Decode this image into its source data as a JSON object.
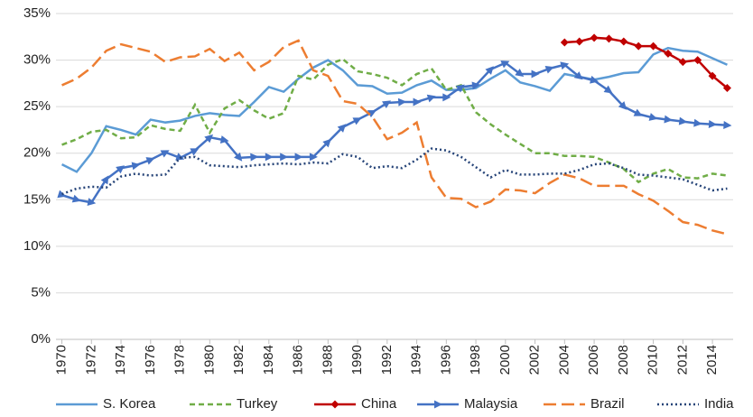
{
  "chart_data": {
    "type": "line",
    "x": [
      1970,
      1971,
      1972,
      1973,
      1974,
      1975,
      1976,
      1977,
      1978,
      1979,
      1980,
      1981,
      1982,
      1983,
      1984,
      1985,
      1986,
      1987,
      1988,
      1989,
      1990,
      1991,
      1992,
      1993,
      1994,
      1995,
      1996,
      1997,
      1998,
      1999,
      2000,
      2001,
      2002,
      2003,
      2004,
      2005,
      2006,
      2007,
      2008,
      2009,
      2010,
      2011,
      2012,
      2013,
      2014,
      2015
    ],
    "xlim": [
      1969.6,
      2015.4
    ],
    "xticks": [
      1970,
      1972,
      1974,
      1976,
      1978,
      1980,
      1982,
      1984,
      1986,
      1988,
      1990,
      1992,
      1994,
      1996,
      1998,
      2000,
      2002,
      2004,
      2006,
      2008,
      2010,
      2012,
      2014
    ],
    "ylim": [
      0,
      35
    ],
    "yticks": [
      {
        "value": 0,
        "label": "0%"
      },
      {
        "value": 5,
        "label": "5%"
      },
      {
        "value": 10,
        "label": "10%"
      },
      {
        "value": 15,
        "label": "15%"
      },
      {
        "value": 20,
        "label": "20%"
      },
      {
        "value": 25,
        "label": "25%"
      },
      {
        "value": 30,
        "label": "30%"
      },
      {
        "value": 35,
        "label": "35%"
      }
    ],
    "grid": true,
    "legend": "bottom",
    "series": [
      {
        "name": "S. Korea",
        "color": "#5b9bd5",
        "line_style": "solid",
        "values": [
          18.8,
          18.0,
          20.0,
          22.9,
          22.5,
          22.0,
          23.6,
          23.3,
          23.5,
          24.0,
          24.3,
          24.1,
          24.0,
          25.5,
          27.1,
          26.6,
          28.0,
          29.2,
          30.0,
          28.9,
          27.3,
          27.2,
          26.4,
          26.5,
          27.3,
          27.8,
          26.8,
          26.8,
          27.0,
          28.0,
          28.9,
          27.6,
          27.2,
          26.7,
          28.5,
          28.2,
          27.9,
          28.2,
          28.6,
          28.7,
          30.6,
          31.3,
          31.0,
          30.9,
          30.2,
          29.5
        ]
      },
      {
        "name": "Turkey",
        "color": "#70ad47",
        "line_style": "dashed",
        "values": [
          20.9,
          21.5,
          22.3,
          22.5,
          21.6,
          21.7,
          23.0,
          22.6,
          22.4,
          25.2,
          22.2,
          24.8,
          25.7,
          24.6,
          23.7,
          24.3,
          28.3,
          27.9,
          29.5,
          30.1,
          28.8,
          28.5,
          28.1,
          27.3,
          28.5,
          29.1,
          26.8,
          27.3,
          24.4,
          23.1,
          22.0,
          21.0,
          20.0,
          20.0,
          19.7,
          19.7,
          19.6,
          19.0,
          18.3,
          16.9,
          17.8,
          18.3,
          17.4,
          17.3,
          17.8,
          17.6
        ]
      },
      {
        "name": "China",
        "color": "#c00000",
        "line_style": "solid",
        "marker": "diamond",
        "values": [
          null,
          null,
          null,
          null,
          null,
          null,
          null,
          null,
          null,
          null,
          null,
          null,
          null,
          null,
          null,
          null,
          null,
          null,
          null,
          null,
          null,
          null,
          null,
          null,
          null,
          null,
          null,
          null,
          null,
          null,
          null,
          null,
          null,
          null,
          31.9,
          32.0,
          32.4,
          32.3,
          32.0,
          31.5,
          31.5,
          30.7,
          29.8,
          30.0,
          28.3,
          27.0
        ]
      },
      {
        "name": "Malaysia",
        "color": "#4472c4",
        "line_style": "solid",
        "marker": "arrow",
        "values": [
          15.5,
          15.0,
          14.7,
          17.2,
          18.4,
          18.7,
          19.3,
          20.1,
          19.5,
          20.3,
          21.7,
          21.4,
          19.5,
          19.6,
          19.6,
          19.6,
          19.6,
          19.6,
          21.2,
          22.8,
          23.6,
          24.4,
          25.4,
          25.5,
          25.5,
          26.0,
          26.0,
          27.1,
          27.3,
          29.0,
          29.7,
          28.5,
          28.5,
          29.1,
          29.5,
          28.2,
          27.8,
          26.7,
          25.0,
          24.2,
          23.8,
          23.6,
          23.4,
          23.2,
          23.1,
          23.0
        ]
      },
      {
        "name": "Brazil",
        "color": "#ed7d31",
        "line_style": "longdash",
        "values": [
          27.3,
          28.0,
          29.2,
          31.0,
          31.7,
          31.3,
          30.9,
          29.8,
          30.3,
          30.4,
          31.2,
          29.9,
          30.8,
          28.9,
          29.8,
          31.4,
          32.1,
          28.9,
          28.3,
          25.6,
          25.3,
          23.9,
          21.5,
          22.2,
          23.3,
          17.4,
          15.2,
          15.1,
          14.2,
          14.8,
          16.1,
          16.0,
          15.7,
          16.8,
          17.7,
          17.3,
          16.5,
          16.5,
          16.5,
          15.6,
          14.9,
          13.8,
          12.6,
          12.3,
          11.7,
          11.3
        ]
      },
      {
        "name": "India",
        "color": "#264478",
        "line_style": "dotted",
        "values": [
          15.6,
          16.2,
          16.4,
          16.3,
          17.5,
          17.8,
          17.6,
          17.7,
          19.5,
          19.6,
          18.7,
          18.6,
          18.5,
          18.7,
          18.8,
          18.9,
          18.8,
          19.0,
          18.9,
          19.9,
          19.6,
          18.4,
          18.6,
          18.4,
          19.3,
          20.5,
          20.3,
          19.6,
          18.5,
          17.4,
          18.2,
          17.7,
          17.7,
          17.8,
          17.8,
          18.2,
          18.8,
          18.9,
          18.4,
          17.7,
          17.6,
          17.4,
          17.2,
          16.6,
          16.0,
          16.2
        ]
      }
    ]
  }
}
